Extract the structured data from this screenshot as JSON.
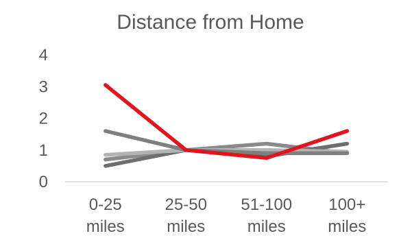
{
  "chart_data": {
    "type": "line",
    "title": "Distance from Home",
    "xlabel": "",
    "ylabel": "",
    "categories": [
      [
        "0-25",
        "miles"
      ],
      [
        "25-50",
        "miles"
      ],
      [
        "51-100",
        "miles"
      ],
      [
        "100+",
        "miles"
      ]
    ],
    "ylim": [
      0,
      4
    ],
    "yticks": [
      "0",
      "1",
      "2",
      "3",
      "4"
    ],
    "grid": false,
    "legend": "none",
    "series": [
      {
        "color": "#8a8a8a",
        "values": [
          0.7,
          1.0,
          1.2,
          0.9
        ]
      },
      {
        "color": "#6e6e6e",
        "values": [
          0.5,
          1.0,
          0.8,
          1.2
        ]
      },
      {
        "color": "#b3b3b3",
        "values": [
          0.85,
          1.0,
          1.0,
          0.95
        ]
      },
      {
        "color": "#7f7f7f",
        "values": [
          1.6,
          1.0,
          0.9,
          0.9
        ]
      },
      {
        "color": "#e0161e",
        "values": [
          3.05,
          1.0,
          0.75,
          1.6
        ]
      }
    ],
    "axis_color": "#d9d9d9"
  }
}
